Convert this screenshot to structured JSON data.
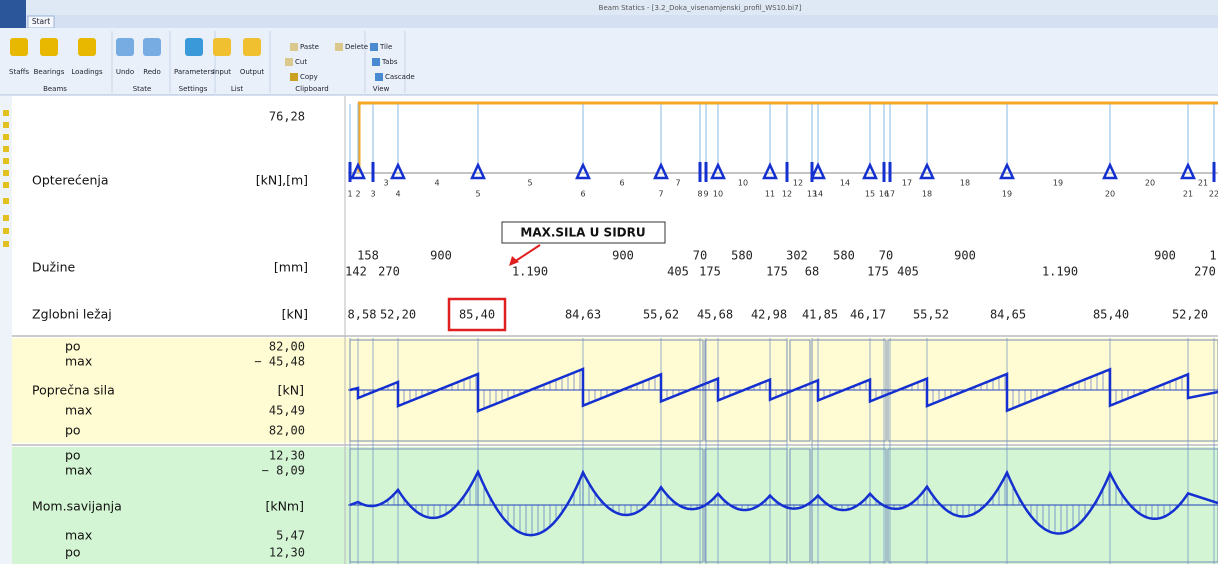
{
  "window": {
    "title": "Beam Statics - [3.2_Doka_visenamjenski_profil_WS10.bi7]",
    "tab": "Start"
  },
  "ribbon": {
    "groups": [
      {
        "label": "Beams",
        "buttons": [
          "Staffs",
          "Bearings",
          "Loadings"
        ]
      },
      {
        "label": "State",
        "buttons": [
          "Undo",
          "Redo"
        ]
      },
      {
        "label": "Settings",
        "buttons": [
          "Parameters"
        ]
      },
      {
        "label": "List",
        "buttons": [
          "Input",
          "Output"
        ]
      },
      {
        "label": "Clipboard",
        "buttons": [
          "Paste",
          "Delete",
          "Cut",
          "Copy"
        ]
      },
      {
        "label": "View",
        "buttons": [
          "Tile",
          "Tabs",
          "Cascade"
        ]
      }
    ]
  },
  "rows": {
    "loads": {
      "label": "Opterećenja",
      "unit": "[kN],[m]",
      "value": "76,28"
    },
    "lengths": {
      "label": "Dužine",
      "unit": "[mm]",
      "top": [
        "158",
        "900",
        "900",
        "70",
        "580",
        "302",
        "580",
        "70",
        "900",
        "900",
        "1"
      ],
      "bottom": [
        "142",
        "270",
        "1.190",
        "405",
        "175",
        "175",
        "68",
        "175",
        "405",
        "1.190",
        "270"
      ]
    },
    "bearings": {
      "label": "Zglobni ležaj",
      "unit": "[kN]",
      "values": [
        "8,58",
        "52,20",
        "85,40",
        "84,63",
        "55,62",
        "45,68",
        "42,98",
        "41,85",
        "46,17",
        "55,52",
        "84,65",
        "85,40",
        "52,20"
      ]
    },
    "shear": {
      "label": "Poprečna sila",
      "unit": "[kN]",
      "lines": [
        {
          "label": "po",
          "value": "82,00"
        },
        {
          "label": "max",
          "value": "− 45,48"
        },
        {
          "label": "max",
          "value": "45,49"
        },
        {
          "label": "po",
          "value": "82,00"
        }
      ]
    },
    "moment": {
      "label": "Mom.savijanja",
      "unit": "[kNm]",
      "lines": [
        {
          "label": "po",
          "value": "12,30"
        },
        {
          "label": "max",
          "value": "− 8,09"
        },
        {
          "label": "max",
          "value": "5,47"
        },
        {
          "label": "po",
          "value": "12,30"
        }
      ]
    }
  },
  "supports": [
    "1",
    "2",
    "3",
    "4",
    "5",
    "6",
    "7",
    "8",
    "9",
    "10",
    "11",
    "12",
    "13",
    "14",
    "15",
    "16",
    "17",
    "18",
    "19",
    "20",
    "21",
    "22"
  ],
  "spans": [
    "3",
    "4",
    "5",
    "6",
    "7",
    "10",
    "12",
    "14",
    "17",
    "18",
    "19",
    "20",
    "21"
  ],
  "annotation": "MAX.SILA U SIDRU"
}
